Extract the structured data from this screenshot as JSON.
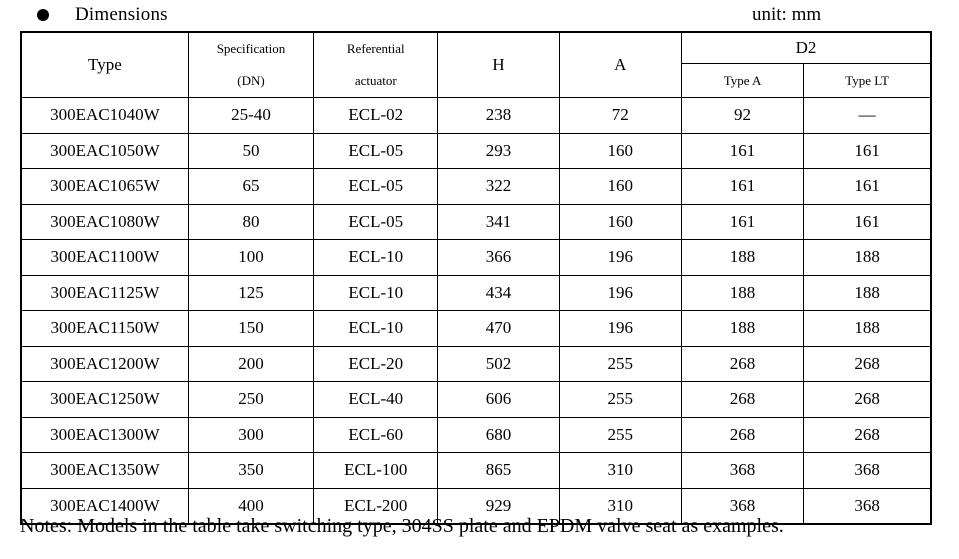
{
  "page": {
    "title": "Dimensions",
    "unit_label": "unit: mm",
    "notes": "Notes: Models in the table take switching type, 304SS plate and EPDM valve seat as examples."
  },
  "table": {
    "headers": {
      "type": "Type",
      "spec_line1": "Specification",
      "spec_line2": "(DN)",
      "ref_line1": "Referential",
      "ref_line2": "actuator",
      "h": "H",
      "a": "A",
      "d2": "D2",
      "d2_type_a": "Type A",
      "d2_type_lt": "Type LT"
    },
    "rows": [
      [
        "300EAC1040W",
        "25-40",
        "ECL-02",
        "238",
        "72",
        "92",
        "—"
      ],
      [
        "300EAC1050W",
        "50",
        "ECL-05",
        "293",
        "160",
        "161",
        "161"
      ],
      [
        "300EAC1065W",
        "65",
        "ECL-05",
        "322",
        "160",
        "161",
        "161"
      ],
      [
        "300EAC1080W",
        "80",
        "ECL-05",
        "341",
        "160",
        "161",
        "161"
      ],
      [
        "300EAC1100W",
        "100",
        "ECL-10",
        "366",
        "196",
        "188",
        "188"
      ],
      [
        "300EAC1125W",
        "125",
        "ECL-10",
        "434",
        "196",
        "188",
        "188"
      ],
      [
        "300EAC1150W",
        "150",
        "ECL-10",
        "470",
        "196",
        "188",
        "188"
      ],
      [
        "300EAC1200W",
        "200",
        "ECL-20",
        "502",
        "255",
        "268",
        "268"
      ],
      [
        "300EAC1250W",
        "250",
        "ECL-40",
        "606",
        "255",
        "268",
        "268"
      ],
      [
        "300EAC1300W",
        "300",
        "ECL-60",
        "680",
        "255",
        "268",
        "268"
      ],
      [
        "300EAC1350W",
        "350",
        "ECL-100",
        "865",
        "310",
        "368",
        "368"
      ],
      [
        "300EAC1400W",
        "400",
        "ECL-200",
        "929",
        "310",
        "368",
        "368"
      ]
    ]
  },
  "colors": {
    "text": "#000000",
    "border": "#000000",
    "background": "#ffffff"
  }
}
